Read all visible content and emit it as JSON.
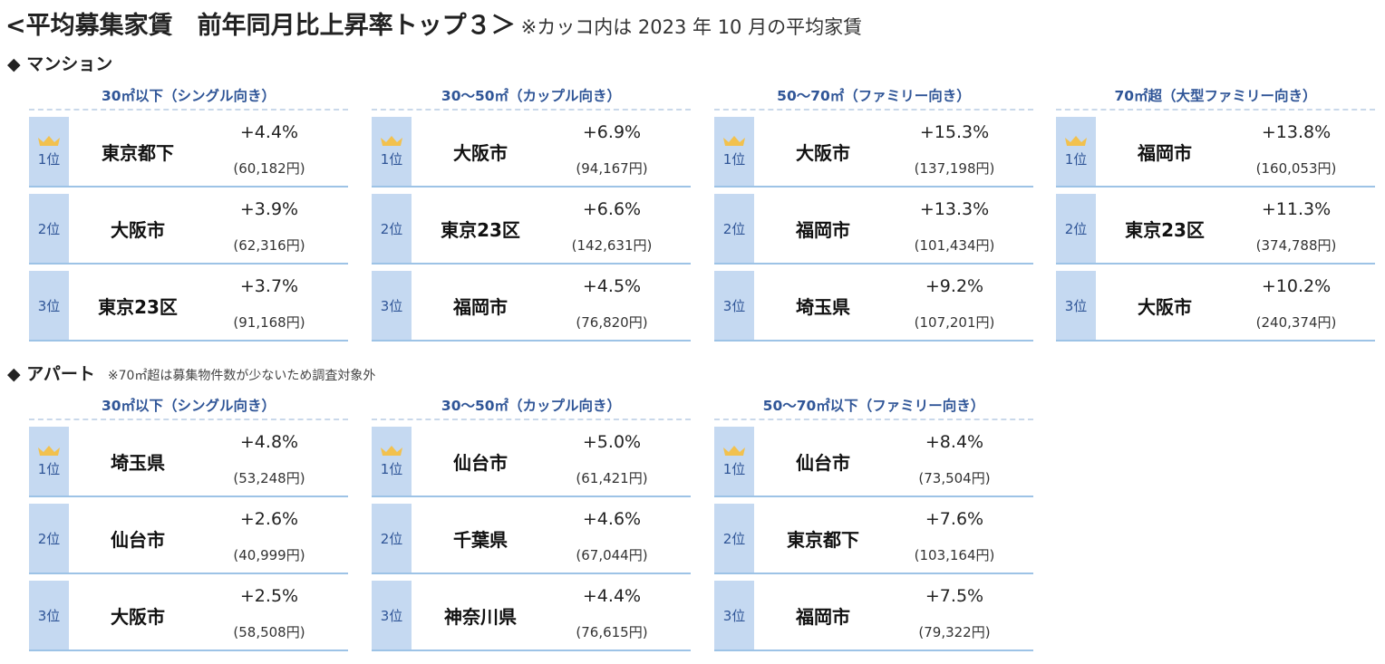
{
  "title": {
    "main": "<平均募集家賃　前年同月比上昇率トップ３＞",
    "note": "※カッコ内は 2023 年 10 月の平均家賃"
  },
  "mansion": {
    "heading": "◆ マンション",
    "groups": [
      {
        "title": "30㎡以下（シングル向き）",
        "rows": [
          {
            "rank": "1位",
            "area": "東京都下",
            "pct": "+4.4%",
            "rent": "(60,182円)"
          },
          {
            "rank": "2位",
            "area": "大阪市",
            "pct": "+3.9%",
            "rent": "(62,316円)"
          },
          {
            "rank": "3位",
            "area": "東京23区",
            "pct": "+3.7%",
            "rent": "(91,168円)"
          }
        ]
      },
      {
        "title": "30～50㎡（カップル向き）",
        "rows": [
          {
            "rank": "1位",
            "area": "大阪市",
            "pct": "+6.9%",
            "rent": "(94,167円)"
          },
          {
            "rank": "2位",
            "area": "東京23区",
            "pct": "+6.6%",
            "rent": "(142,631円)"
          },
          {
            "rank": "3位",
            "area": "福岡市",
            "pct": "+4.5%",
            "rent": "(76,820円)"
          }
        ]
      },
      {
        "title": "50～70㎡（ファミリー向き）",
        "rows": [
          {
            "rank": "1位",
            "area": "大阪市",
            "pct": "+15.3%",
            "rent": "(137,198円)"
          },
          {
            "rank": "2位",
            "area": "福岡市",
            "pct": "+13.3%",
            "rent": "(101,434円)"
          },
          {
            "rank": "3位",
            "area": "埼玉県",
            "pct": "+9.2%",
            "rent": "(107,201円)"
          }
        ]
      },
      {
        "title": "70㎡超（大型ファミリー向き）",
        "rows": [
          {
            "rank": "1位",
            "area": "福岡市",
            "pct": "+13.8%",
            "rent": "(160,053円)"
          },
          {
            "rank": "2位",
            "area": "東京23区",
            "pct": "+11.3%",
            "rent": "(374,788円)"
          },
          {
            "rank": "3位",
            "area": "大阪市",
            "pct": "+10.2%",
            "rent": "(240,374円)"
          }
        ]
      }
    ]
  },
  "apart": {
    "heading": "◆ アパート",
    "sub_note": "※70㎡超は募集物件数が少ないため調査対象外",
    "groups": [
      {
        "title": "30㎡以下（シングル向き）",
        "rows": [
          {
            "rank": "1位",
            "area": "埼玉県",
            "pct": "+4.8%",
            "rent": "(53,248円)"
          },
          {
            "rank": "2位",
            "area": "仙台市",
            "pct": "+2.6%",
            "rent": "(40,999円)"
          },
          {
            "rank": "3位",
            "area": "大阪市",
            "pct": "+2.5%",
            "rent": "(58,508円)"
          }
        ]
      },
      {
        "title": "30～50㎡（カップル向き）",
        "rows": [
          {
            "rank": "1位",
            "area": "仙台市",
            "pct": "+5.0%",
            "rent": "(61,421円)"
          },
          {
            "rank": "2位",
            "area": "千葉県",
            "pct": "+4.6%",
            "rent": "(67,044円)"
          },
          {
            "rank": "3位",
            "area": "神奈川県",
            "pct": "+4.4%",
            "rent": "(76,615円)"
          }
        ]
      },
      {
        "title": "50～70㎡以下（ファミリー向き）",
        "rows": [
          {
            "rank": "1位",
            "area": "仙台市",
            "pct": "+8.4%",
            "rent": "(73,504円)"
          },
          {
            "rank": "2位",
            "area": "東京都下",
            "pct": "+7.6%",
            "rent": "(103,164円)"
          },
          {
            "rank": "3位",
            "area": "福岡市",
            "pct": "+7.5%",
            "rent": "(79,322円)"
          }
        ]
      }
    ]
  },
  "colors": {
    "rank_bg": "#c5d9f1",
    "heading_blue": "#2f5597",
    "crown": "#f2c14e"
  },
  "icons": {
    "crown": "crown-icon"
  }
}
